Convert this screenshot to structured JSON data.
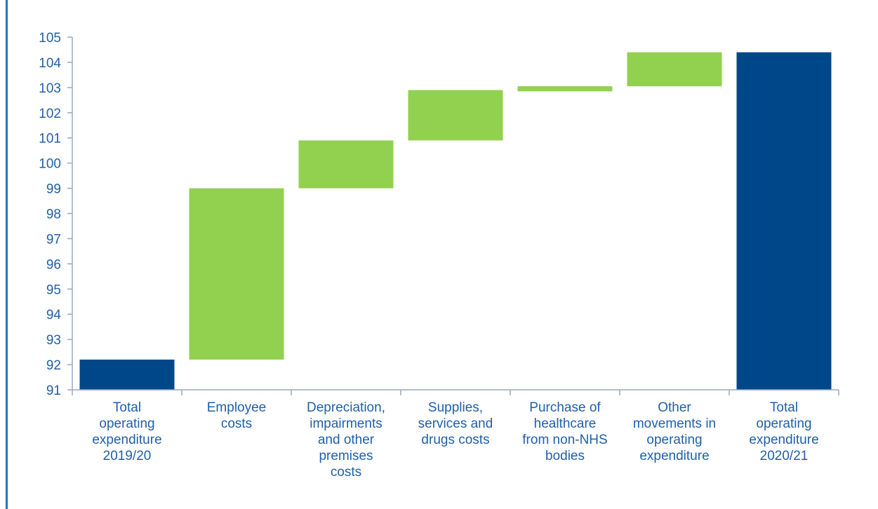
{
  "chart_data": {
    "type": "waterfall",
    "categories": [
      [
        "Total",
        "operating",
        "expenditure",
        "2019/20"
      ],
      [
        "Employee",
        "costs"
      ],
      [
        "Depreciation,",
        "impairments",
        "and other",
        "premises",
        "costs"
      ],
      [
        "Supplies,",
        "services and",
        "drugs costs"
      ],
      [
        "Purchase of",
        "healthcare",
        "from non-NHS",
        "bodies"
      ],
      [
        "Other",
        "movements in",
        "operating",
        "expenditure"
      ],
      [
        "Total",
        "operating",
        "expenditure",
        "2020/21"
      ]
    ],
    "bars": [
      {
        "kind": "total",
        "start": 91,
        "end": 92.2
      },
      {
        "kind": "change",
        "start": 92.2,
        "end": 99.0
      },
      {
        "kind": "change",
        "start": 99.0,
        "end": 100.9
      },
      {
        "kind": "change",
        "start": 100.9,
        "end": 102.9
      },
      {
        "kind": "change",
        "start": 102.85,
        "end": 103.05
      },
      {
        "kind": "change",
        "start": 103.05,
        "end": 104.4
      },
      {
        "kind": "total",
        "start": 91,
        "end": 104.4
      }
    ],
    "yticks": [
      91,
      92,
      93,
      94,
      95,
      96,
      97,
      98,
      99,
      100,
      101,
      102,
      103,
      104,
      105
    ],
    "ylim": [
      91,
      105
    ],
    "title": "",
    "xlabel": "",
    "ylabel": "",
    "grid": false,
    "colors": {
      "total": "#00478a",
      "change": "#92d050",
      "axis": "#9aa7c2",
      "text": "#1f5fa8"
    }
  }
}
